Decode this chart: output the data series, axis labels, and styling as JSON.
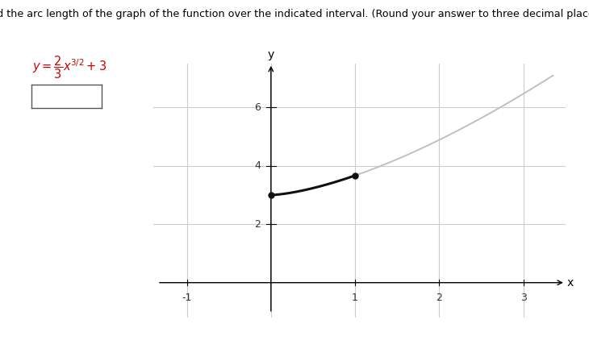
{
  "title_text": "Find the arc length of the graph of the function over the indicated interval. (Round your answer to three decimal places.)",
  "background_color": "#ffffff",
  "xlim": [
    -1.4,
    3.5
  ],
  "ylim": [
    -1.2,
    7.5
  ],
  "xticks": [
    -1,
    1,
    2,
    3
  ],
  "yticks": [
    2,
    4,
    6
  ],
  "xlabel": "x",
  "ylabel": "y",
  "curve_x_start": 0,
  "curve_x_end": 1,
  "curve_full_x_end": 3.35,
  "curve_color_main": "#111111",
  "curve_color_full": "#c0c0c0",
  "dot_color": "#111111",
  "dot_size": 5,
  "grid_color": "#cccccc",
  "axis_color": "#000000",
  "title_color": "#000000",
  "formula_color": "#cc0000",
  "tick_label_size": 9
}
